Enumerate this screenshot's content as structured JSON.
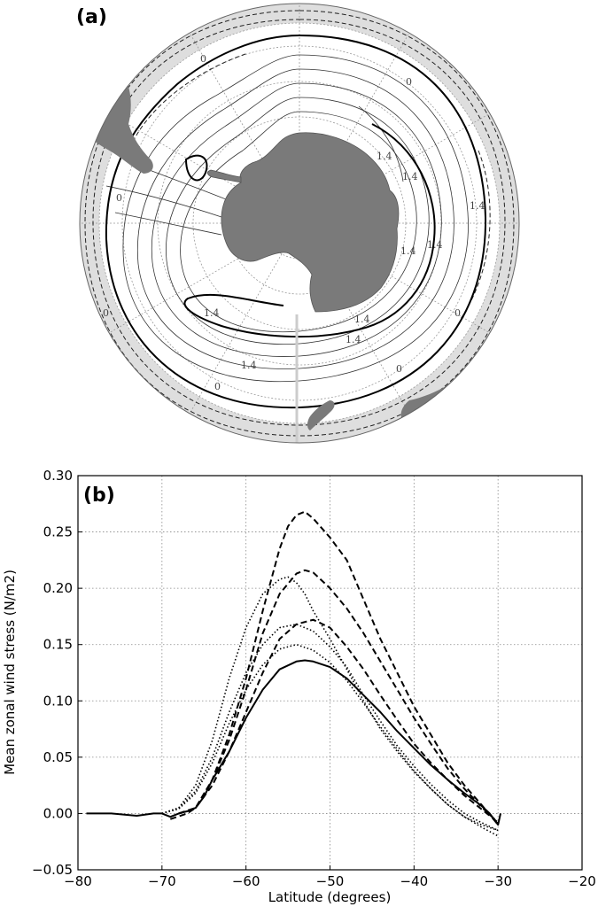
{
  "figure": {
    "panel_a_label": "(a)",
    "panel_b_label": "(b)"
  },
  "map": {
    "contour_labels": [
      "0",
      "0",
      "0",
      "0",
      "0",
      "0",
      "0",
      "1.4",
      "1.4",
      "1.4",
      "1.4",
      "1.4",
      "1.4",
      "1.4",
      "1.4",
      "1.4"
    ],
    "colors": {
      "land": "#7a7a7a",
      "ice_band": "#dedede",
      "ocean": "#ffffff",
      "contour": "#111111"
    }
  },
  "chart_data": {
    "type": "line",
    "xlabel": "Latitude (degrees)",
    "ylabel": "Mean zonal wind stress (N/m2)",
    "xlim": [
      -80,
      -20
    ],
    "ylim": [
      -0.05,
      0.3
    ],
    "xticks": [
      -80,
      -70,
      -60,
      -50,
      -40,
      -30,
      -20
    ],
    "yticks": [
      -0.05,
      0.0,
      0.05,
      0.1,
      0.15,
      0.2,
      0.25,
      0.3
    ],
    "xtick_labels": [
      "−80",
      "−70",
      "−60",
      "−50",
      "−40",
      "−30",
      "−20"
    ],
    "ytick_labels": [
      "−0.05",
      "0.00",
      "0.05",
      "0.10",
      "0.15",
      "0.20",
      "0.25",
      "0.30"
    ],
    "grid": true,
    "series": [
      {
        "style": "solid",
        "x": [
          -79,
          -76,
          -73,
          -71,
          -70,
          -69,
          -68,
          -67,
          -66,
          -65,
          -64,
          -62,
          -60,
          -58,
          -56,
          -54,
          -53,
          -52,
          -50,
          -48,
          -46,
          -44,
          -42,
          -40,
          -38,
          -36,
          -34,
          -32,
          -31,
          -30,
          -29.7
        ],
        "y": [
          0.0,
          0.0,
          -0.002,
          0.0,
          0.0,
          -0.003,
          0.0,
          0.002,
          0.005,
          0.015,
          0.03,
          0.055,
          0.085,
          0.11,
          0.128,
          0.135,
          0.136,
          0.135,
          0.13,
          0.12,
          0.105,
          0.09,
          0.073,
          0.058,
          0.043,
          0.03,
          0.018,
          0.007,
          0.0,
          -0.01,
          0.0
        ]
      },
      {
        "style": "dashed",
        "x": [
          -69,
          -67,
          -66,
          -64,
          -62,
          -60,
          -58,
          -56,
          -55,
          -54,
          -53,
          -52,
          -50,
          -48,
          -46,
          -44,
          -42,
          -40,
          -38,
          -36,
          -34,
          -32,
          -30
        ],
        "y": [
          -0.005,
          0.0,
          0.005,
          0.03,
          0.07,
          0.12,
          0.18,
          0.235,
          0.255,
          0.265,
          0.268,
          0.262,
          0.245,
          0.225,
          0.19,
          0.155,
          0.125,
          0.095,
          0.07,
          0.045,
          0.025,
          0.008,
          -0.01
        ]
      },
      {
        "style": "dashed",
        "x": [
          -68,
          -66,
          -64,
          -62,
          -60,
          -58,
          -56,
          -54,
          -53,
          -52,
          -50,
          -48,
          -46,
          -44,
          -42,
          -40,
          -38,
          -36,
          -34,
          -32,
          -30
        ],
        "y": [
          0.0,
          0.005,
          0.03,
          0.065,
          0.11,
          0.16,
          0.195,
          0.213,
          0.216,
          0.214,
          0.2,
          0.182,
          0.16,
          0.135,
          0.11,
          0.085,
          0.062,
          0.04,
          0.022,
          0.006,
          -0.008
        ]
      },
      {
        "style": "dashed",
        "x": [
          -68,
          -66,
          -64,
          -62,
          -60,
          -58,
          -56,
          -54,
          -52,
          -50,
          -48,
          -46,
          -44,
          -42,
          -40,
          -38,
          -36,
          -34,
          -32,
          -30
        ],
        "y": [
          0.0,
          0.005,
          0.025,
          0.055,
          0.09,
          0.125,
          0.155,
          0.168,
          0.172,
          0.165,
          0.148,
          0.128,
          0.105,
          0.083,
          0.062,
          0.045,
          0.03,
          0.016,
          0.004,
          -0.008
        ]
      },
      {
        "style": "dotted",
        "x": [
          -70,
          -68,
          -66,
          -64,
          -62,
          -60,
          -58,
          -56,
          -55,
          -54,
          -53,
          -52,
          -50,
          -48,
          -46,
          -44,
          -42,
          -40,
          -38,
          -36,
          -34,
          -32,
          -30
        ],
        "y": [
          0.0,
          0.005,
          0.025,
          0.065,
          0.12,
          0.165,
          0.195,
          0.208,
          0.21,
          0.205,
          0.195,
          0.18,
          0.155,
          0.128,
          0.1,
          0.075,
          0.055,
          0.037,
          0.022,
          0.008,
          -0.003,
          -0.01,
          -0.015
        ]
      },
      {
        "style": "dotted",
        "x": [
          -70,
          -68,
          -66,
          -64,
          -62,
          -60,
          -58,
          -56,
          -54,
          -52,
          -50,
          -48,
          -46,
          -44,
          -42,
          -40,
          -38,
          -36,
          -34,
          -32,
          -30
        ],
        "y": [
          0.0,
          0.005,
          0.02,
          0.05,
          0.09,
          0.125,
          0.15,
          0.165,
          0.168,
          0.162,
          0.148,
          0.13,
          0.105,
          0.082,
          0.06,
          0.042,
          0.026,
          0.012,
          0.0,
          -0.008,
          -0.015
        ]
      },
      {
        "style": "dotted",
        "x": [
          -70,
          -68,
          -66,
          -64,
          -62,
          -60,
          -58,
          -56,
          -54,
          -52,
          -50,
          -48,
          -46,
          -44,
          -42,
          -40,
          -38,
          -36,
          -34,
          -32,
          -30
        ],
        "y": [
          0.0,
          0.004,
          0.018,
          0.045,
          0.08,
          0.11,
          0.132,
          0.146,
          0.15,
          0.145,
          0.134,
          0.118,
          0.098,
          0.077,
          0.057,
          0.038,
          0.022,
          0.008,
          -0.003,
          -0.012,
          -0.02
        ]
      }
    ]
  }
}
